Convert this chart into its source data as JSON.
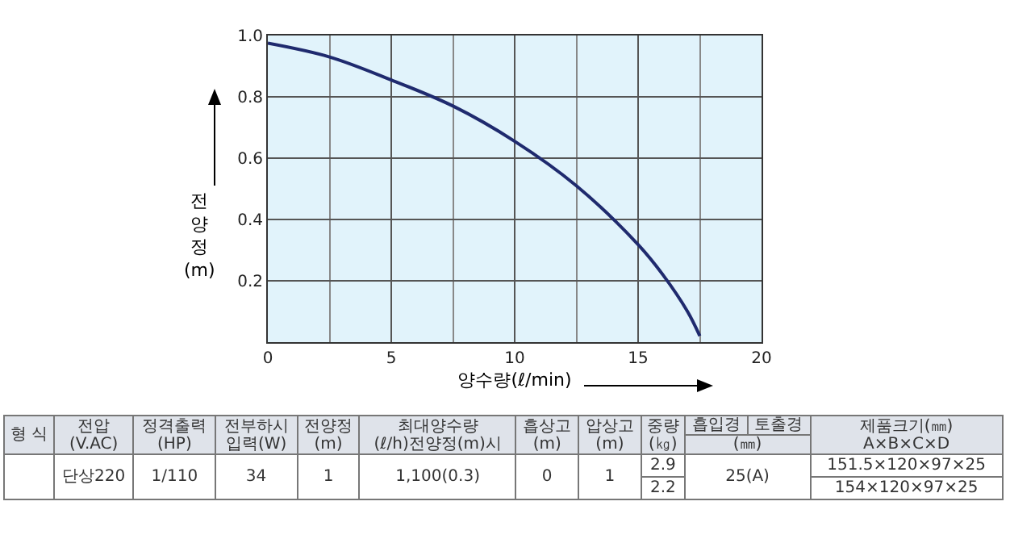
{
  "chart_data": {
    "type": "line",
    "xlabel": "양수량(ℓ/min)",
    "ylabel": "전양정\n(m)",
    "x": [
      0,
      2.5,
      5,
      7.5,
      10,
      12.5,
      15,
      16,
      17,
      17.5
    ],
    "series": [
      {
        "color": "#1f2a6e",
        "values": [
          0.975,
          0.93,
          0.855,
          0.77,
          0.655,
          0.51,
          0.318,
          0.22,
          0.1,
          0.02
        ]
      }
    ],
    "xlim": [
      0,
      20
    ],
    "xticks": [
      0,
      5,
      10,
      15,
      20
    ],
    "ylim": [
      0,
      1
    ],
    "yticks": [
      {
        "value": 0,
        "label": null
      },
      0.2,
      0.4,
      0.6,
      0.8,
      {
        "value": 1,
        "label": "1.0"
      }
    ],
    "grid": true,
    "marker": "none",
    "line_style": "solid",
    "annotations": [
      "형 식",
      "전압\n(V.AC)",
      "정격출력\n(HP)",
      "전부하시\n입력(W)",
      "전양정\n(m)",
      "최대양수량\n(ℓ/h)전양정(m)시",
      "흡상고\n(m)",
      "압상고\n(m)",
      "중량\n(㎏)",
      "흡입경",
      "토출경",
      "제품크기(㎜)\nA×B×C×D",
      "(㎜)",
      "단상220",
      "1/110",
      "34",
      "1",
      "1,100(0.3)",
      "0",
      "1",
      "2.9",
      "25(A)",
      "151.5×120×97×25",
      "2.2",
      "154×120×97×25"
    ]
  }
}
